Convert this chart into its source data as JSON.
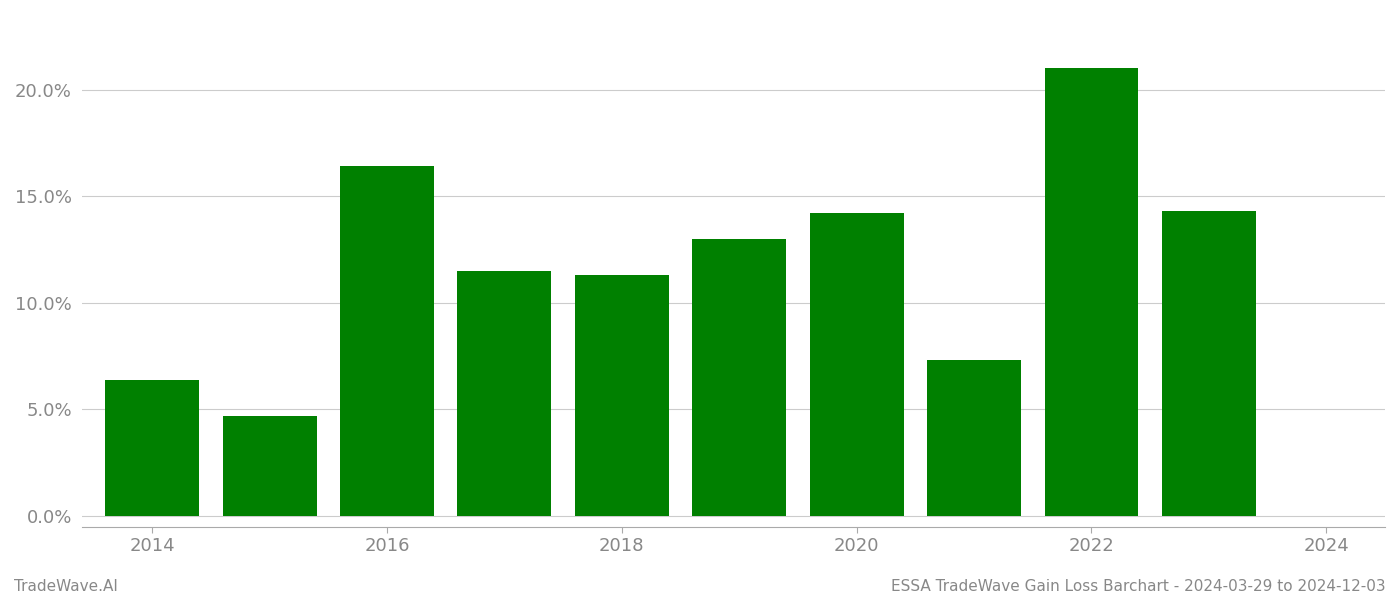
{
  "years": [
    2014,
    2015,
    2016,
    2017,
    2018,
    2019,
    2020,
    2021,
    2022,
    2023
  ],
  "values": [
    0.064,
    0.047,
    0.164,
    0.115,
    0.113,
    0.13,
    0.142,
    0.073,
    0.21,
    0.143
  ],
  "bar_color": "#008000",
  "ylabel_ticks": [
    0.0,
    0.05,
    0.1,
    0.15,
    0.2
  ],
  "ylim": [
    -0.005,
    0.235
  ],
  "background_color": "#ffffff",
  "bar_width": 0.8,
  "grid_color": "#cccccc",
  "tick_label_color": "#888888",
  "footer_color": "#888888",
  "footer_left": "TradeWave.AI",
  "footer_right": "ESSA TradeWave Gain Loss Barchart - 2024-03-29 to 2024-12-03",
  "footer_fontsize": 11,
  "tick_fontsize": 13
}
